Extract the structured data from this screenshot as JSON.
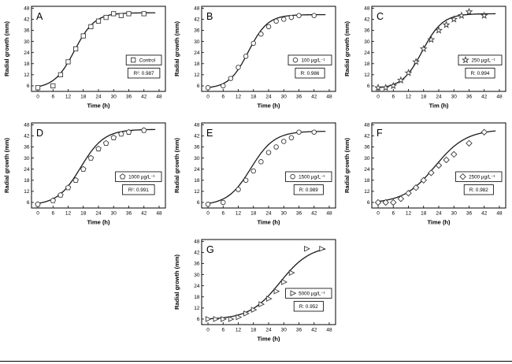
{
  "figure": {
    "background": "#ffffff",
    "axis_color": "#000000",
    "curve_color": "#1a1a1a",
    "marker_color": "#3a3a3a"
  },
  "axes": {
    "ylabel": "Radial growth (mm)",
    "xticks": [
      0,
      6,
      12,
      18,
      24,
      30,
      36,
      42,
      48
    ],
    "yticks": [
      6,
      12,
      18,
      24,
      30,
      36,
      42,
      48
    ],
    "xlim": [
      -2.5,
      50.5
    ],
    "ylim": [
      3,
      49
    ]
  },
  "chart_data": [
    {
      "type": "scatter",
      "panel": "A",
      "marker": "square",
      "legend_label": "Control",
      "r_label": "R²: 0.987",
      "xlabel": "Time (h)",
      "ylabel": "Radial growth (mm)",
      "x": [
        0,
        6,
        9,
        12,
        15,
        18,
        21,
        24,
        27,
        30,
        33,
        36,
        42
      ],
      "y": [
        5,
        6,
        12,
        19,
        26,
        33,
        38,
        41,
        43,
        45,
        44,
        45,
        45
      ],
      "fit": {
        "y0": 4.5,
        "a": 41,
        "t0": 14.5,
        "k": 4.0
      }
    },
    {
      "type": "scatter",
      "panel": "B",
      "marker": "circle",
      "legend_label": "100 µg/L⁻¹",
      "r_label": "R: 0.986",
      "xlabel": "Time (h)",
      "ylabel": "Radial growth (mm)",
      "x": [
        0,
        6,
        9,
        12,
        15,
        18,
        21,
        24,
        27,
        30,
        33,
        36,
        42
      ],
      "y": [
        5,
        6,
        10,
        16,
        22,
        29,
        34,
        38,
        41,
        42,
        43,
        44,
        44
      ],
      "fit": {
        "y0": 4.5,
        "a": 40,
        "t0": 16,
        "k": 3.8
      }
    },
    {
      "type": "scatter",
      "panel": "C",
      "marker": "star",
      "legend_label": "250 µg/L⁻¹",
      "r_label": "R: 0.994",
      "xlabel": "Tim (h)",
      "ylabel": "Radial growth (mm)",
      "x": [
        0,
        3,
        6,
        9,
        12,
        15,
        18,
        21,
        24,
        27,
        30,
        33,
        36,
        42
      ],
      "y": [
        5,
        5,
        6,
        9,
        13,
        19,
        26,
        31,
        36,
        39,
        42,
        44,
        46,
        44
      ],
      "fit": {
        "y0": 4.5,
        "a": 40.5,
        "t0": 17.5,
        "k": 4.0
      }
    },
    {
      "type": "scatter",
      "panel": "D",
      "marker": "pentagon",
      "legend_label": "1000 µg/L⁻¹",
      "r_label": "R²: 0.991",
      "xlabel": "Time (h)",
      "ylabel": "Radial growth (mm)",
      "x": [
        0,
        6,
        9,
        12,
        15,
        18,
        21,
        24,
        27,
        30,
        33,
        36,
        42
      ],
      "y": [
        5,
        7,
        10,
        14,
        18,
        24,
        30,
        35,
        38,
        41,
        43,
        44,
        45
      ],
      "fit": {
        "y0": 4.5,
        "a": 41,
        "t0": 17,
        "k": 4.6
      }
    },
    {
      "type": "scatter",
      "panel": "E",
      "marker": "circle",
      "legend_label": "1500 µg/L⁻¹",
      "r_label": "R: 0.989",
      "xlabel": "Time (h)",
      "ylabel": "Radial growth (mm)",
      "x": [
        0,
        6,
        12,
        15,
        18,
        21,
        24,
        27,
        30,
        33,
        36,
        42
      ],
      "y": [
        5,
        6,
        13,
        18,
        23,
        28,
        33,
        36,
        39,
        41,
        44,
        44
      ],
      "fit": {
        "y0": 4.5,
        "a": 40,
        "t0": 17,
        "k": 4.6
      }
    },
    {
      "type": "scatter",
      "panel": "F",
      "marker": "diamond",
      "legend_label": "2500 µg/L⁻¹",
      "r_label": "R: 0.982",
      "xlabel": "Time (h)",
      "ylabel": "Radial growth (mm)",
      "x": [
        0,
        3,
        6,
        9,
        12,
        15,
        18,
        21,
        24,
        27,
        30,
        36,
        42
      ],
      "y": [
        6,
        6,
        6,
        8,
        11,
        14,
        18,
        22,
        26,
        29,
        32,
        38,
        44
      ],
      "fit": {
        "y0": 5.5,
        "a": 40,
        "t0": 22.5,
        "k": 6.2
      }
    },
    {
      "type": "scatter",
      "panel": "G",
      "marker": "triangle-right",
      "legend_label": "5000 µg/L⁻¹",
      "r_label": "R: 0.952",
      "xlabel": "Time (h)",
      "ylabel": "Radial growth (mm)",
      "x": [
        0,
        3,
        6,
        9,
        12,
        15,
        18,
        21,
        24,
        27,
        30,
        33,
        39,
        45
      ],
      "y": [
        6,
        6,
        6,
        6,
        7,
        9,
        11,
        14,
        17,
        21,
        26,
        31,
        44,
        44
      ],
      "fit": {
        "y0": 5.8,
        "a": 40,
        "t0": 28.5,
        "k": 6.0
      }
    }
  ]
}
